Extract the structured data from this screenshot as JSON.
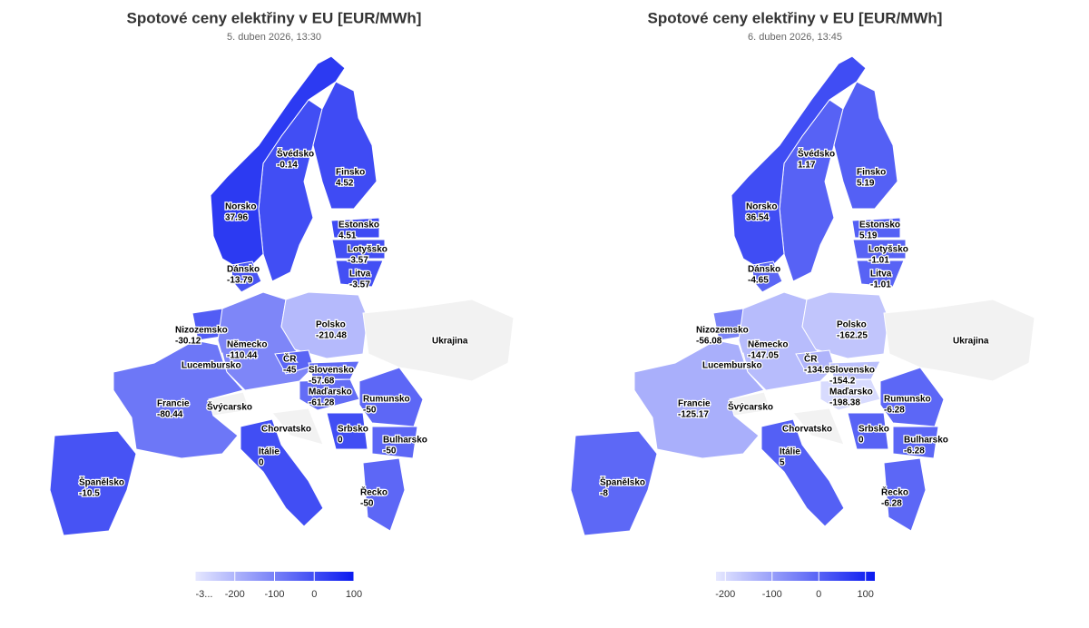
{
  "maps": [
    {
      "title": "Spotové ceny elektřiny v EU [EUR/MWh]",
      "subtitle": "5. duben 2026, 13:30",
      "regions": [
        {
          "name": "Švédsko",
          "value": -0.14
        },
        {
          "name": "Finsko",
          "value": 4.52
        },
        {
          "name": "Norsko",
          "value": 37.96
        },
        {
          "name": "Estonsko",
          "value": 4.51
        },
        {
          "name": "Lotyšsko",
          "value": -3.57
        },
        {
          "name": "Litva",
          "value": -3.57
        },
        {
          "name": "Dánsko",
          "value": -13.79
        },
        {
          "name": "Nizozemsko",
          "value": -30.12
        },
        {
          "name": "Německo",
          "value": -110.44
        },
        {
          "name": "Lucembursko"
        },
        {
          "name": "Polsko",
          "value": -210.48
        },
        {
          "name": "ČR",
          "value": -45
        },
        {
          "name": "Slovensko",
          "value": -57.68
        },
        {
          "name": "Maďarsko",
          "value": -61.28
        },
        {
          "name": "Rumunsko",
          "value": -50
        },
        {
          "name": "Francie",
          "value": -80.44
        },
        {
          "name": "Švýcarsko"
        },
        {
          "name": "Chorvatsko"
        },
        {
          "name": "Srbsko",
          "value": 0
        },
        {
          "name": "Bulharsko",
          "value": -50
        },
        {
          "name": "Itálie",
          "value": 0
        },
        {
          "name": "Španělsko",
          "value": -10.5
        },
        {
          "name": "Řecko",
          "value": -50
        },
        {
          "name": "Ukrajina"
        }
      ],
      "colorbar": {
        "lim": [
          -300,
          100
        ],
        "ticks": [
          {
            "value": -300,
            "label": "-3..."
          },
          -200,
          -100,
          0,
          100
        ]
      }
    },
    {
      "title": "Spotové ceny elektřiny v EU [EUR/MWh]",
      "subtitle": "6. duben 2026, 13:45",
      "regions": [
        {
          "name": "Švédsko",
          "value": 1.17
        },
        {
          "name": "Finsko",
          "value": 5.19
        },
        {
          "name": "Norsko",
          "value": 36.54
        },
        {
          "name": "Estonsko",
          "value": 5.19
        },
        {
          "name": "Lotyšsko",
          "value": -1.01
        },
        {
          "name": "Litva",
          "value": -1.01
        },
        {
          "name": "Dánsko",
          "value": -4.65
        },
        {
          "name": "Nizozemsko",
          "value": -56.08
        },
        {
          "name": "Německo",
          "value": -147.05
        },
        {
          "name": "Lucembursko"
        },
        {
          "name": "Polsko",
          "value": -162.25
        },
        {
          "name": "ČR",
          "value": -134.96
        },
        {
          "name": "Slovensko",
          "value": -154.2
        },
        {
          "name": "Maďarsko",
          "value": -198.38
        },
        {
          "name": "Rumunsko",
          "value": -6.28
        },
        {
          "name": "Francie",
          "value": -125.17
        },
        {
          "name": "Švýcarsko"
        },
        {
          "name": "Chorvatsko"
        },
        {
          "name": "Srbsko",
          "value": 0
        },
        {
          "name": "Bulharsko",
          "value": -6.28
        },
        {
          "name": "Itálie",
          "value": 5
        },
        {
          "name": "Španělsko",
          "value": -8
        },
        {
          "name": "Řecko",
          "value": -6.28
        },
        {
          "name": "Ukrajina"
        }
      ],
      "colorbar": {
        "lim": [
          -220,
          120
        ],
        "ticks": [
          -200,
          -100,
          0,
          100
        ]
      }
    }
  ]
}
